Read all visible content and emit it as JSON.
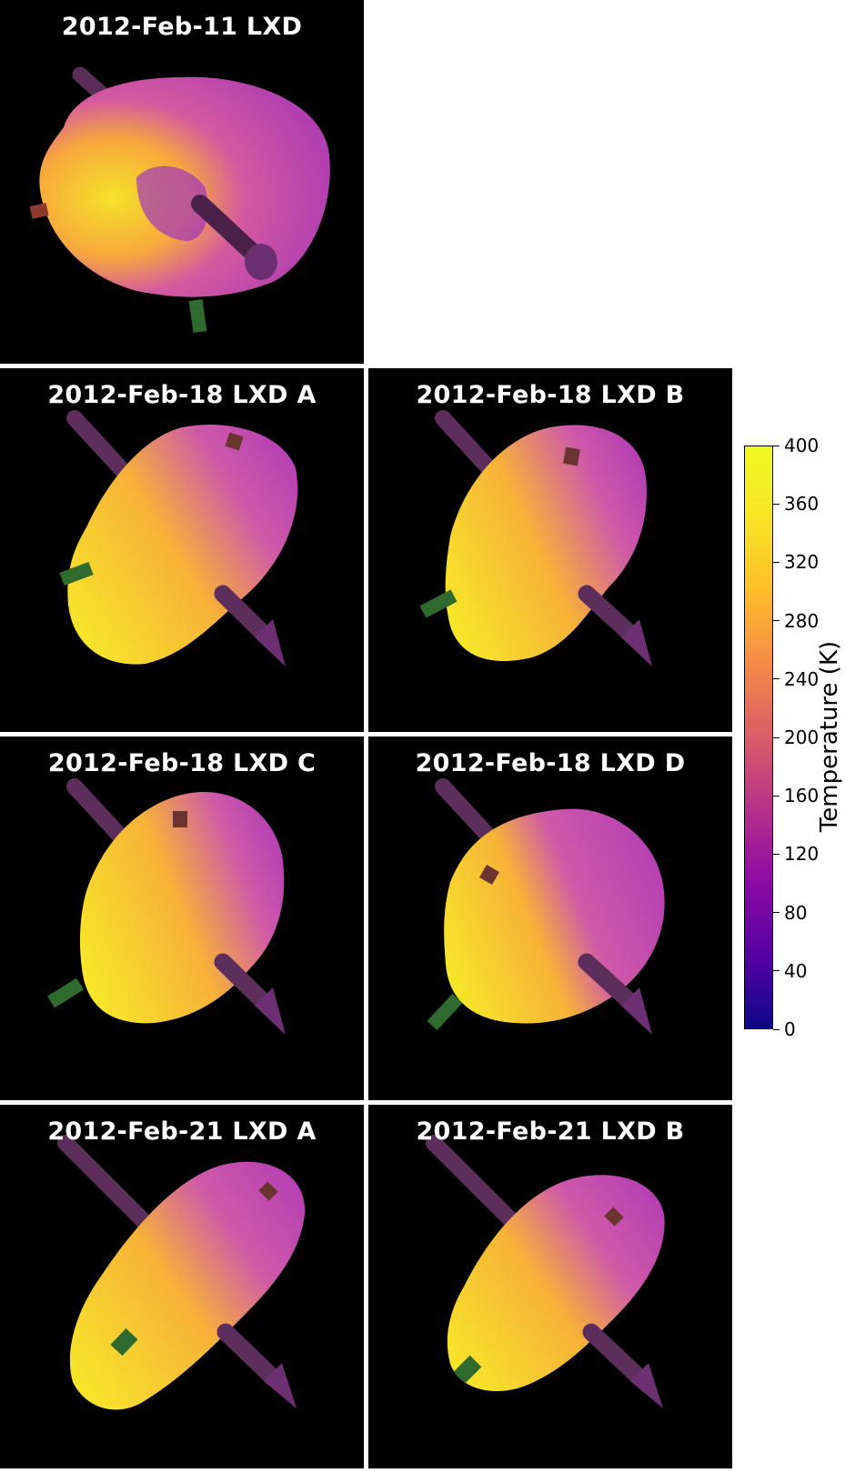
{
  "panels": [
    {
      "title": "2012-Feb-11 LXD"
    },
    {
      "title": "2012-Feb-18 LXD A"
    },
    {
      "title": "2012-Feb-18 LXD B"
    },
    {
      "title": "2012-Feb-18 LXD C"
    },
    {
      "title": "2012-Feb-18 LXD D"
    },
    {
      "title": "2012-Feb-21 LXD A"
    },
    {
      "title": "2012-Feb-21 LXD B"
    }
  ],
  "colorbar": {
    "label": "Temperature (K)",
    "min": 0,
    "max": 400,
    "ticks": [
      "0",
      "40",
      "80",
      "120",
      "160",
      "200",
      "240",
      "280",
      "320",
      "360",
      "400"
    ],
    "colors": {
      "low": "#0d0887",
      "mid": "#cc4778",
      "high": "#f0f921"
    }
  }
}
